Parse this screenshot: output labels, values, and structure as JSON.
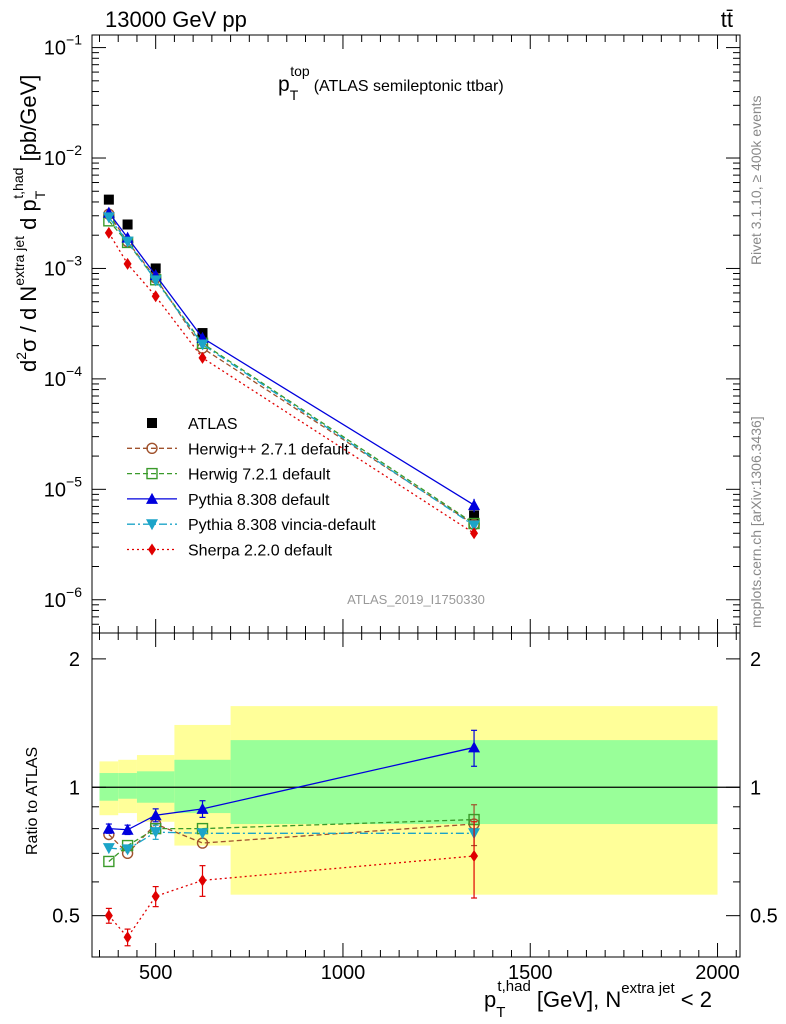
{
  "header": {
    "energy_label": "13000 GeV pp",
    "process_label": "tt̄"
  },
  "side_text": {
    "rivet": "Rivet 3.1.10, ≥ 400k events",
    "mcplots": "mcplots.cern.ch [arXiv:1306.3436]"
  },
  "colors": {
    "atlas": "#000000",
    "herwigpp": "#a0522d",
    "herwig7": "#3a9a2a",
    "pythia": "#0000dd",
    "vincia": "#1ca4c8",
    "sherpa": "#e00000",
    "band_inner": "#99ff99",
    "band_outer": "#ffff99"
  },
  "chart_data": [
    {
      "type": "scatter",
      "panel": "main",
      "title_main": "p",
      "title_sub": "T",
      "title_sup": "top",
      "title_rest": "(ATLAS semileptonic ttbar)",
      "analysis_label": "ATLAS_2019_I1750330",
      "ylabel_a": "d",
      "ylabel_sup": "2",
      "ylabel_b": "σ / d N",
      "ylabel_sup2": "extra jet",
      "ylabel_c": " d p",
      "ylabel_sub3": "T",
      "ylabel_sup3": "t,had",
      "ylabel_d": " [pb/GeV]",
      "yscale": "log",
      "ylim": [
        5e-07,
        0.13
      ],
      "xlim": [
        330,
        2060
      ],
      "y_tick_labels": [
        {
          "v": 1e-06,
          "base": "10",
          "exp": "−6"
        },
        {
          "v": 1e-05,
          "base": "10",
          "exp": "−5"
        },
        {
          "v": 0.0001,
          "base": "10",
          "exp": "−4"
        },
        {
          "v": 0.001,
          "base": "10",
          "exp": "−3"
        },
        {
          "v": 0.01,
          "base": "10",
          "exp": "−2"
        },
        {
          "v": 0.1,
          "base": "10",
          "exp": "−1"
        }
      ],
      "x": [
        375,
        425,
        500,
        625,
        1350
      ],
      "series": [
        {
          "name": "ATLAS",
          "key": "atlas",
          "marker": "square-filled",
          "line": "none",
          "values": [
            0.0042,
            0.0025,
            0.001,
            0.00026,
            5.8e-06
          ]
        },
        {
          "name": "Herwig++ 2.7.1 default",
          "key": "herwigpp",
          "marker": "circle-open",
          "line": "dashed",
          "values": [
            0.0031,
            0.00175,
            0.00082,
            0.00019,
            4.8e-06
          ]
        },
        {
          "name": "Herwig 7.2.1 default",
          "key": "herwig7",
          "marker": "square-open",
          "line": "dashed",
          "values": [
            0.0027,
            0.00172,
            0.00079,
            0.00021,
            4.9e-06
          ]
        },
        {
          "name": "Pythia 8.308 default",
          "key": "pythia",
          "marker": "triangle-up",
          "line": "solid",
          "values": [
            0.0032,
            0.0019,
            0.00087,
            0.000235,
            7.2e-06
          ]
        },
        {
          "name": "Pythia 8.308 vincia-default",
          "key": "vincia",
          "marker": "triangle-down",
          "line": "dashdot",
          "values": [
            0.0029,
            0.00175,
            0.00078,
            0.000205,
            4.7e-06
          ]
        },
        {
          "name": "Sherpa 2.2.0 default",
          "key": "sherpa",
          "marker": "diamond",
          "line": "dotted",
          "values": [
            0.0021,
            0.0011,
            0.00056,
            0.000155,
            4e-06
          ]
        }
      ]
    },
    {
      "type": "line",
      "panel": "ratio",
      "ylabel": "Ratio to ATLAS",
      "xlabel_main": "p",
      "xlabel_sub": "T",
      "xlabel_sup": "t,had",
      "xlabel_mid": " [GeV], N",
      "xlabel_sup2": "extra jet",
      "xlabel_end": " < 2",
      "xlim": [
        330,
        2060
      ],
      "ylim": [
        0.4,
        2.3
      ],
      "yscale": "log",
      "reference_line": 1,
      "y_tick_labels": [
        "0.5",
        "1",
        "2"
      ],
      "x_tick_labels": [
        "500",
        "1000",
        "1500",
        "2000"
      ],
      "bins": [
        [
          350,
          400
        ],
        [
          400,
          450
        ],
        [
          450,
          550
        ],
        [
          550,
          700
        ],
        [
          700,
          2000
        ]
      ],
      "band_inner": [
        [
          0.93,
          1.08
        ],
        [
          0.94,
          1.08
        ],
        [
          0.92,
          1.09
        ],
        [
          0.87,
          1.16
        ],
        [
          0.82,
          1.29
        ]
      ],
      "band_outer": [
        [
          0.86,
          1.15
        ],
        [
          0.87,
          1.16
        ],
        [
          0.83,
          1.19
        ],
        [
          0.73,
          1.4
        ],
        [
          0.56,
          1.55
        ]
      ],
      "x": [
        375,
        425,
        500,
        625,
        1350
      ],
      "series": [
        {
          "name": "Herwig++ 2.7.1 default",
          "key": "herwigpp",
          "marker": "circle-open",
          "line": "dashed",
          "values": [
            0.775,
            0.7,
            0.82,
            0.74,
            0.82
          ],
          "err": [
            0,
            0,
            0,
            0,
            0.09
          ]
        },
        {
          "name": "Herwig 7.2.1 default",
          "key": "herwig7",
          "marker": "square-open",
          "line": "dashed",
          "values": [
            0.67,
            0.73,
            0.8,
            0.8,
            0.84
          ],
          "err": [
            0,
            0,
            0,
            0,
            0
          ]
        },
        {
          "name": "Pythia 8.308 default",
          "key": "pythia",
          "marker": "triangle-up",
          "line": "solid",
          "values": [
            0.8,
            0.795,
            0.86,
            0.89,
            1.24
          ],
          "err": [
            0.02,
            0.02,
            0.03,
            0.04,
            0.12
          ]
        },
        {
          "name": "Pythia 8.308 vincia-default",
          "key": "vincia",
          "marker": "triangle-down",
          "line": "dashdot",
          "values": [
            0.72,
            0.715,
            0.785,
            0.78,
            0.78
          ],
          "err": [
            0,
            0,
            0.03,
            0,
            0
          ]
        },
        {
          "name": "Sherpa 2.2.0 default",
          "key": "sherpa",
          "marker": "diamond",
          "line": "dotted",
          "values": [
            0.5,
            0.445,
            0.555,
            0.605,
            0.69
          ],
          "err": [
            0.02,
            0.02,
            0.03,
            0.05,
            0.14
          ]
        }
      ]
    }
  ]
}
